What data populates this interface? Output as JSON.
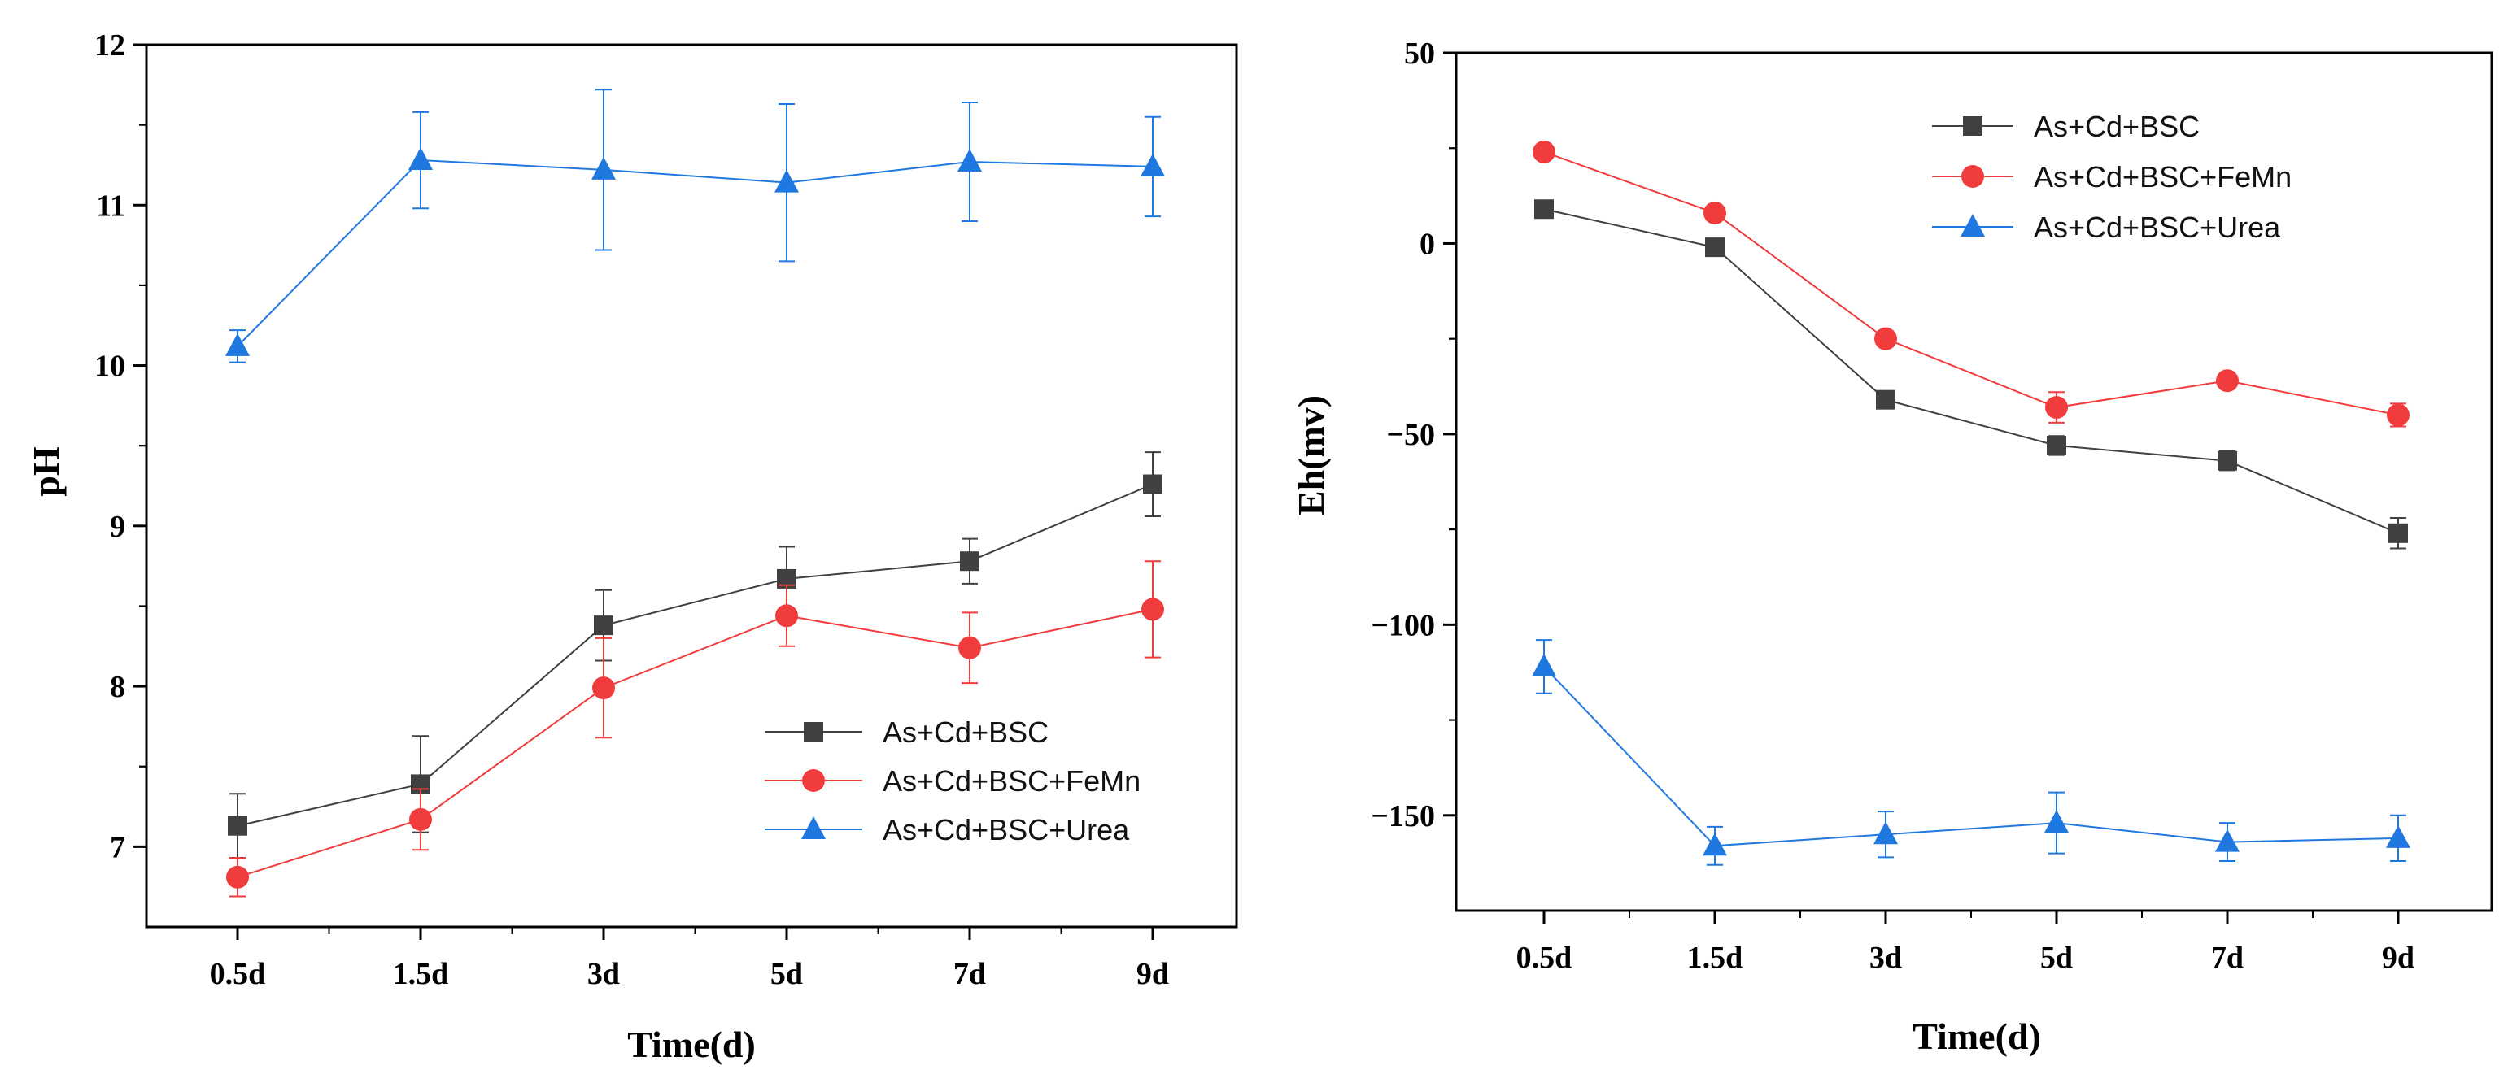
{
  "chart_data": [
    {
      "type": "line",
      "xlabel": "Time(d)",
      "ylabel": "pH",
      "categories": [
        "0.5d",
        "1.5d",
        "3d",
        "5d",
        "7d",
        "9d"
      ],
      "ylim": [
        6.5,
        12
      ],
      "yticks": [
        7,
        8,
        9,
        10,
        11,
        12
      ],
      "legend_position": "lower-right",
      "series": [
        {
          "name": "As+Cd+BSC",
          "color": "#404040",
          "marker": "square",
          "values": [
            7.13,
            7.39,
            8.38,
            8.67,
            8.78,
            9.26
          ],
          "errors": [
            0.2,
            0.3,
            0.22,
            0.2,
            0.14,
            0.2
          ]
        },
        {
          "name": "As+Cd+BSC+FeMn",
          "color": "#f03c3c",
          "marker": "circle",
          "values": [
            6.81,
            7.17,
            7.99,
            8.44,
            8.24,
            8.48
          ],
          "errors": [
            0.12,
            0.19,
            0.31,
            0.19,
            0.22,
            0.3
          ]
        },
        {
          "name": "As+Cd+BSC+Urea",
          "color": "#1f78e0",
          "marker": "triangle",
          "values": [
            10.12,
            11.28,
            11.22,
            11.14,
            11.27,
            11.24
          ],
          "errors": [
            0.1,
            0.3,
            0.5,
            0.49,
            0.37,
            0.31
          ]
        }
      ]
    },
    {
      "type": "line",
      "xlabel": "Time(d)",
      "ylabel": "Eh(mv)",
      "categories": [
        "0.5d",
        "1.5d",
        "3d",
        "5d",
        "7d",
        "9d"
      ],
      "ylim": [
        -175,
        50
      ],
      "yticks": [
        -150,
        -100,
        -50,
        0,
        50
      ],
      "legend_position": "top-right",
      "series": [
        {
          "name": "As+Cd+BSC",
          "color": "#404040",
          "marker": "square",
          "values": [
            9,
            -1,
            -41,
            -53,
            -57,
            -76
          ],
          "errors": [
            1,
            1.5,
            1.5,
            2.5,
            2.5,
            4
          ]
        },
        {
          "name": "As+Cd+BSC+FeMn",
          "color": "#f03c3c",
          "marker": "circle",
          "values": [
            24,
            8,
            -25,
            -43,
            -36,
            -45
          ],
          "errors": [
            1,
            1,
            1.5,
            4,
            1.5,
            3
          ]
        },
        {
          "name": "As+Cd+BSC+Urea",
          "color": "#1f78e0",
          "marker": "triangle",
          "values": [
            -111,
            -158,
            -155,
            -152,
            -157,
            -156
          ],
          "errors": [
            7,
            5,
            6,
            8,
            5,
            6
          ]
        }
      ]
    }
  ]
}
